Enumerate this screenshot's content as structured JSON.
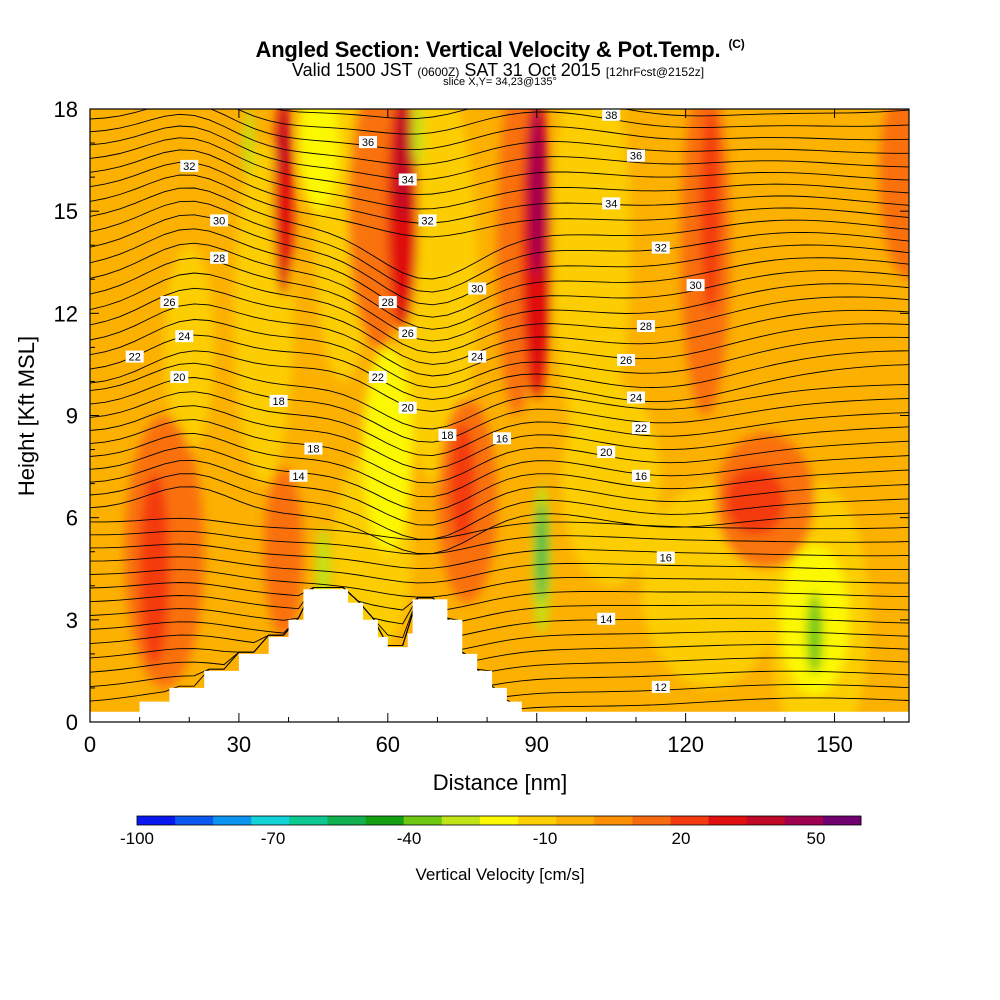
{
  "header": {
    "title": "Angled Section: Vertical Velocity & Pot.Temp.",
    "title_units": "(C)",
    "valid_prefix": "Valid 1500 JST",
    "valid_utc": "(0600Z)",
    "valid_date": "SAT 31 Oct 2015",
    "forecast": "[12hrFcst@2152z]",
    "slice": "slice X,Y= 34,23@135°"
  },
  "chart_data": {
    "type": "contour",
    "xlabel": "Distance [nm]",
    "ylabel": "Height [Kft MSL]",
    "xlim": [
      0,
      165
    ],
    "ylim": [
      0,
      18
    ],
    "xticks": [
      0,
      30,
      60,
      90,
      120,
      150
    ],
    "yticks": [
      0,
      3,
      6,
      9,
      12,
      15,
      18
    ],
    "colorbar": {
      "label": "Vertical Velocity [cm/s]",
      "ticks": [
        -100,
        -70,
        -40,
        -10,
        20,
        50
      ],
      "colors": [
        "#0a18f0",
        "#0a58ee",
        "#0a94f0",
        "#12d4d8",
        "#0dc890",
        "#10b050",
        "#12a010",
        "#6ec812",
        "#c0e418",
        "#fcf800",
        "#fcd000",
        "#fcb000",
        "#fc9000",
        "#f86a10",
        "#f43a10",
        "#e01010",
        "#c00828",
        "#a00050",
        "#700070"
      ]
    },
    "field_features": [
      {
        "name": "updraft",
        "x": 13,
        "y_range": [
          2,
          8
        ],
        "max": 20
      },
      {
        "name": "updraft",
        "x": 39,
        "y_range": [
          14,
          18
        ],
        "max": 35
      },
      {
        "name": "updraft",
        "x": 63,
        "y_range": [
          13,
          18
        ],
        "max": 40
      },
      {
        "name": "updraft",
        "x": 90,
        "y_range": [
          9,
          18
        ],
        "max": 50
      },
      {
        "name": "updraft",
        "x": 75,
        "y_range": [
          5,
          9
        ],
        "max": 25
      },
      {
        "name": "downdraft",
        "x": 91,
        "y_range": [
          3,
          7
        ],
        "min": -35
      },
      {
        "name": "downdraft",
        "x": 146,
        "y_range": [
          1.5,
          3.5
        ],
        "min": -30
      },
      {
        "name": "downdraft",
        "x": 47,
        "y_range": [
          3.5,
          6
        ],
        "min": -25
      }
    ],
    "theta_contours": [
      12,
      14,
      16,
      18,
      20,
      22,
      24,
      26,
      28,
      30,
      32,
      34,
      36
    ],
    "contour_labels": [
      "34",
      "32",
      "30",
      "28",
      "26",
      "24",
      "22",
      "20",
      "18",
      "14",
      "18",
      "36",
      "34",
      "32",
      "28",
      "26",
      "22",
      "20",
      "18",
      "30",
      "24",
      "16",
      "38",
      "36",
      "34",
      "32",
      "30",
      "28",
      "26",
      "24",
      "22",
      "20",
      "16",
      "16",
      "14",
      "12"
    ],
    "terrain_kft": [
      [
        0,
        0.3
      ],
      [
        10,
        0.3
      ],
      [
        10,
        0.6
      ],
      [
        16,
        0.6
      ],
      [
        16,
        1.0
      ],
      [
        23,
        1.5
      ],
      [
        30,
        2.0
      ],
      [
        36,
        2.5
      ],
      [
        40,
        3.0
      ],
      [
        43,
        3.5
      ],
      [
        43,
        3.9
      ],
      [
        52,
        3.9
      ],
      [
        52,
        3.5
      ],
      [
        55,
        3.0
      ],
      [
        58,
        2.5
      ],
      [
        60,
        2.2
      ],
      [
        64,
        2.6
      ],
      [
        65,
        3.6
      ],
      [
        70,
        3.6
      ],
      [
        72,
        3.0
      ],
      [
        75,
        2.0
      ],
      [
        78,
        1.5
      ],
      [
        81,
        1.0
      ],
      [
        84,
        0.6
      ],
      [
        87,
        0.3
      ],
      [
        165,
        0.3
      ]
    ]
  }
}
